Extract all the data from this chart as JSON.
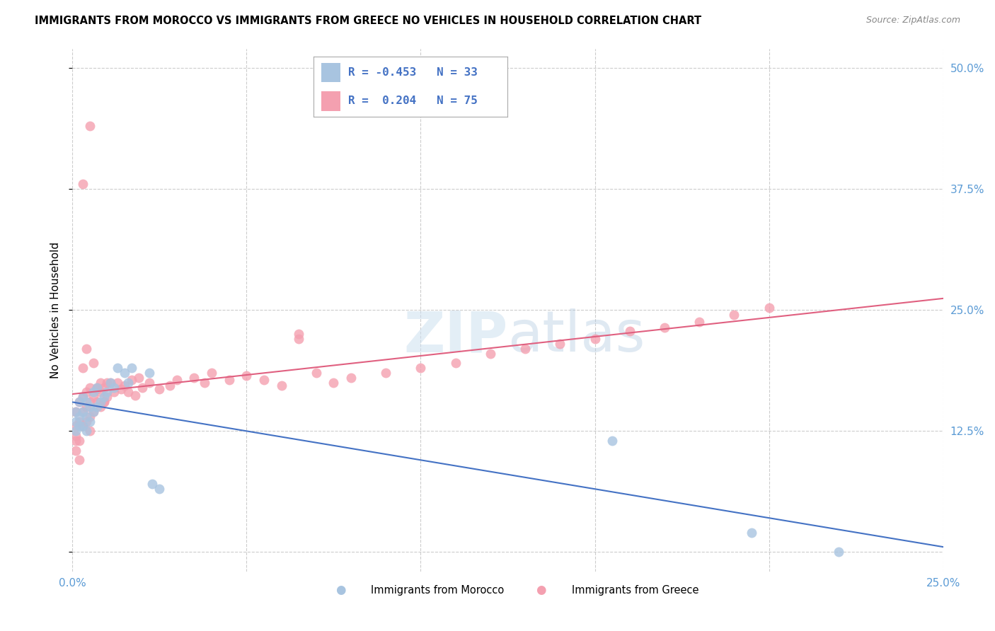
{
  "title": "IMMIGRANTS FROM MOROCCO VS IMMIGRANTS FROM GREECE NO VEHICLES IN HOUSEHOLD CORRELATION CHART",
  "source": "Source: ZipAtlas.com",
  "ylabel": "No Vehicles in Household",
  "xlim": [
    0.0,
    0.25
  ],
  "ylim": [
    -0.02,
    0.52
  ],
  "xticks": [
    0.0,
    0.05,
    0.1,
    0.15,
    0.2,
    0.25
  ],
  "yticks": [
    0.0,
    0.125,
    0.25,
    0.375,
    0.5
  ],
  "legend_r_morocco": "-0.453",
  "legend_n_morocco": "33",
  "legend_r_greece": "0.204",
  "legend_n_greece": "75",
  "color_morocco": "#a8c4e0",
  "color_greece": "#f4a0b0",
  "line_color_morocco": "#4472c4",
  "line_color_greece": "#e06080",
  "morocco_x": [
    0.001,
    0.001,
    0.001,
    0.002,
    0.002,
    0.002,
    0.003,
    0.003,
    0.003,
    0.004,
    0.004,
    0.004,
    0.005,
    0.005,
    0.006,
    0.006,
    0.007,
    0.007,
    0.008,
    0.009,
    0.01,
    0.011,
    0.012,
    0.013,
    0.015,
    0.016,
    0.017,
    0.022,
    0.023,
    0.025,
    0.155,
    0.195,
    0.22
  ],
  "morocco_y": [
    0.145,
    0.135,
    0.125,
    0.155,
    0.14,
    0.13,
    0.16,
    0.145,
    0.13,
    0.155,
    0.14,
    0.125,
    0.15,
    0.135,
    0.165,
    0.145,
    0.17,
    0.15,
    0.155,
    0.16,
    0.165,
    0.175,
    0.17,
    0.19,
    0.185,
    0.175,
    0.19,
    0.185,
    0.07,
    0.065,
    0.115,
    0.02,
    0.0
  ],
  "greece_x": [
    0.001,
    0.001,
    0.001,
    0.001,
    0.002,
    0.002,
    0.002,
    0.003,
    0.003,
    0.003,
    0.004,
    0.004,
    0.004,
    0.005,
    0.005,
    0.005,
    0.006,
    0.006,
    0.007,
    0.007,
    0.008,
    0.008,
    0.009,
    0.009,
    0.01,
    0.01,
    0.011,
    0.012,
    0.013,
    0.014,
    0.015,
    0.016,
    0.017,
    0.018,
    0.019,
    0.02,
    0.022,
    0.025,
    0.028,
    0.03,
    0.035,
    0.038,
    0.04,
    0.045,
    0.05,
    0.055,
    0.06,
    0.065,
    0.07,
    0.075,
    0.08,
    0.09,
    0.1,
    0.11,
    0.12,
    0.13,
    0.14,
    0.15,
    0.16,
    0.17,
    0.18,
    0.19,
    0.2,
    0.001,
    0.002,
    0.003,
    0.004,
    0.005,
    0.006,
    0.007,
    0.008,
    0.009,
    0.065,
    0.003,
    0.005
  ],
  "greece_y": [
    0.13,
    0.12,
    0.105,
    0.145,
    0.135,
    0.115,
    0.155,
    0.145,
    0.13,
    0.16,
    0.15,
    0.135,
    0.165,
    0.155,
    0.14,
    0.17,
    0.16,
    0.145,
    0.17,
    0.155,
    0.165,
    0.15,
    0.17,
    0.155,
    0.175,
    0.16,
    0.175,
    0.165,
    0.175,
    0.168,
    0.172,
    0.165,
    0.178,
    0.162,
    0.18,
    0.17,
    0.175,
    0.168,
    0.172,
    0.178,
    0.18,
    0.175,
    0.185,
    0.178,
    0.182,
    0.178,
    0.172,
    0.22,
    0.185,
    0.175,
    0.18,
    0.185,
    0.19,
    0.195,
    0.205,
    0.21,
    0.215,
    0.22,
    0.228,
    0.232,
    0.238,
    0.245,
    0.252,
    0.115,
    0.095,
    0.19,
    0.21,
    0.125,
    0.195,
    0.168,
    0.175,
    0.155,
    0.225,
    0.38,
    0.44
  ]
}
